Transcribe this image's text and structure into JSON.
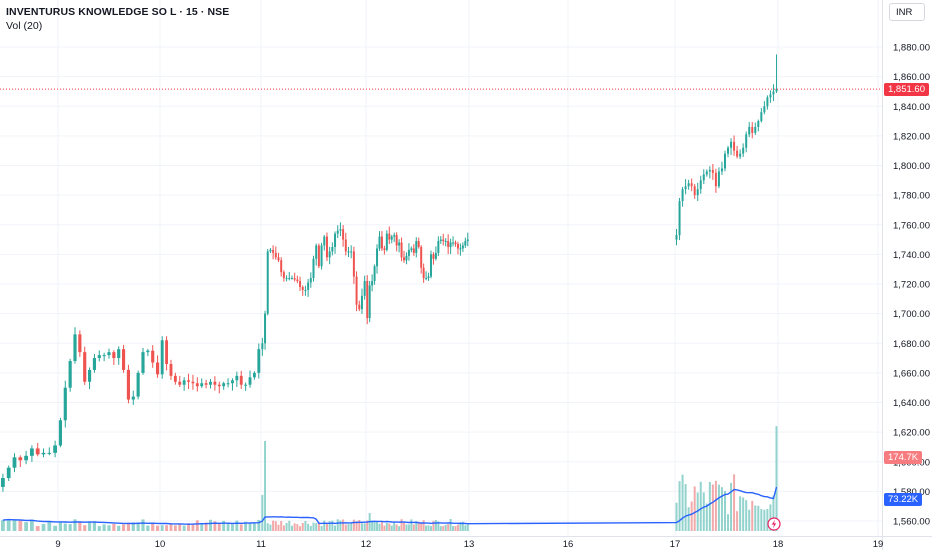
{
  "header": {
    "title": "INVENTURUS KNOWLEDGE SO L · 15 · NSE",
    "indicator": "Vol (20)"
  },
  "currency_button": "INR",
  "tags": {
    "last_price": "1,851.60",
    "volume": "174.7K",
    "volume_ma": "73.22K"
  },
  "colors": {
    "up": "#26a69a",
    "down": "#ef5350",
    "up_volume": "#80cbc4",
    "down_volume": "#ef9a9a",
    "volume_ma": "#2962ff",
    "price_line": "#f23645",
    "grid": "#f0f3fa"
  },
  "chart_data": {
    "type": "candlestick",
    "y_axis": {
      "range": [
        1550,
        1895
      ],
      "ticks": [
        "1,880.00",
        "1,860.00",
        "1,840.00",
        "1,820.00",
        "1,800.00",
        "1,780.00",
        "1,760.00",
        "1,740.00",
        "1,720.00",
        "1,700.00",
        "1,680.00",
        "1,660.00",
        "1,640.00",
        "1,620.00",
        "1,600.00",
        "1,580.00",
        "1,560.00"
      ],
      "tick_values": [
        1880,
        1860,
        1840,
        1820,
        1800,
        1780,
        1760,
        1740,
        1720,
        1700,
        1680,
        1660,
        1640,
        1620,
        1600,
        1580,
        1560
      ]
    },
    "x_axis": {
      "tick_labels": [
        "9",
        "10",
        "11",
        "12",
        "13",
        "16",
        "17",
        "18",
        "19"
      ],
      "tick_days": [
        1,
        2,
        3,
        4,
        5,
        6,
        7,
        8,
        9
      ]
    },
    "last_price": 1851.6,
    "grid": true,
    "days": [
      {
        "day": 0,
        "closes": [
          1589,
          1596,
          1603,
          1601,
          1604,
          1609,
          1605,
          1606,
          1606,
          1611
        ]
      },
      {
        "day": 1,
        "closes": [
          1628,
          1650,
          1668,
          1686,
          1674,
          1654,
          1662,
          1670,
          1672,
          1672,
          1674,
          1670,
          1676,
          1662,
          1642,
          1644,
          1660,
          1674,
          1675,
          1667,
          1659
        ]
      },
      {
        "day": 2,
        "closes": [
          1682,
          1666,
          1658,
          1654,
          1652,
          1655,
          1654,
          1653,
          1651,
          1653,
          1652,
          1654,
          1652,
          1651,
          1653,
          1653,
          1655,
          1658,
          1652,
          1652,
          1657,
          1660,
          1676
        ]
      },
      {
        "day": 3,
        "closes": [
          1680,
          1700,
          1742,
          1743,
          1741,
          1738,
          1736,
          1728,
          1724,
          1724,
          1724,
          1724,
          1723,
          1722,
          1718,
          1716,
          1716,
          1721,
          1724,
          1737,
          1746,
          1732,
          1746,
          1752,
          1738,
          1742,
          1745,
          1754,
          1756,
          1757,
          1750,
          1742,
          1742,
          1742,
          1725,
          1706,
          1703,
          1712,
          1722
        ]
      },
      {
        "day": 4,
        "closes": [
          1697,
          1719,
          1722,
          1732,
          1744,
          1752,
          1744,
          1743,
          1754,
          1750,
          1752,
          1753,
          1746,
          1748,
          1738,
          1736,
          1739,
          1743,
          1744,
          1741,
          1749,
          1745,
          1731,
          1724,
          1724,
          1725,
          1740,
          1737,
          1741,
          1749,
          1750,
          1749,
          1749,
          1745,
          1748,
          1748,
          1747,
          1744,
          1744,
          1746,
          1749,
          1750
        ]
      },
      {
        "day": 5,
        "closes": [
          1753,
          1776,
          1784,
          1786,
          1788,
          1786,
          1780,
          1784,
          1790,
          1794,
          1796,
          1797,
          1795,
          1786,
          1796,
          1798,
          1808,
          1812,
          1816,
          1810,
          1806,
          1808,
          1812,
          1821,
          1826,
          1822,
          1826,
          1830,
          1836,
          1840,
          1846,
          1848,
          1850,
          1851.6
        ]
      }
    ],
    "volume": {
      "max": 200000,
      "last_volume": 174700,
      "volume_ma_last": 73220
    }
  }
}
